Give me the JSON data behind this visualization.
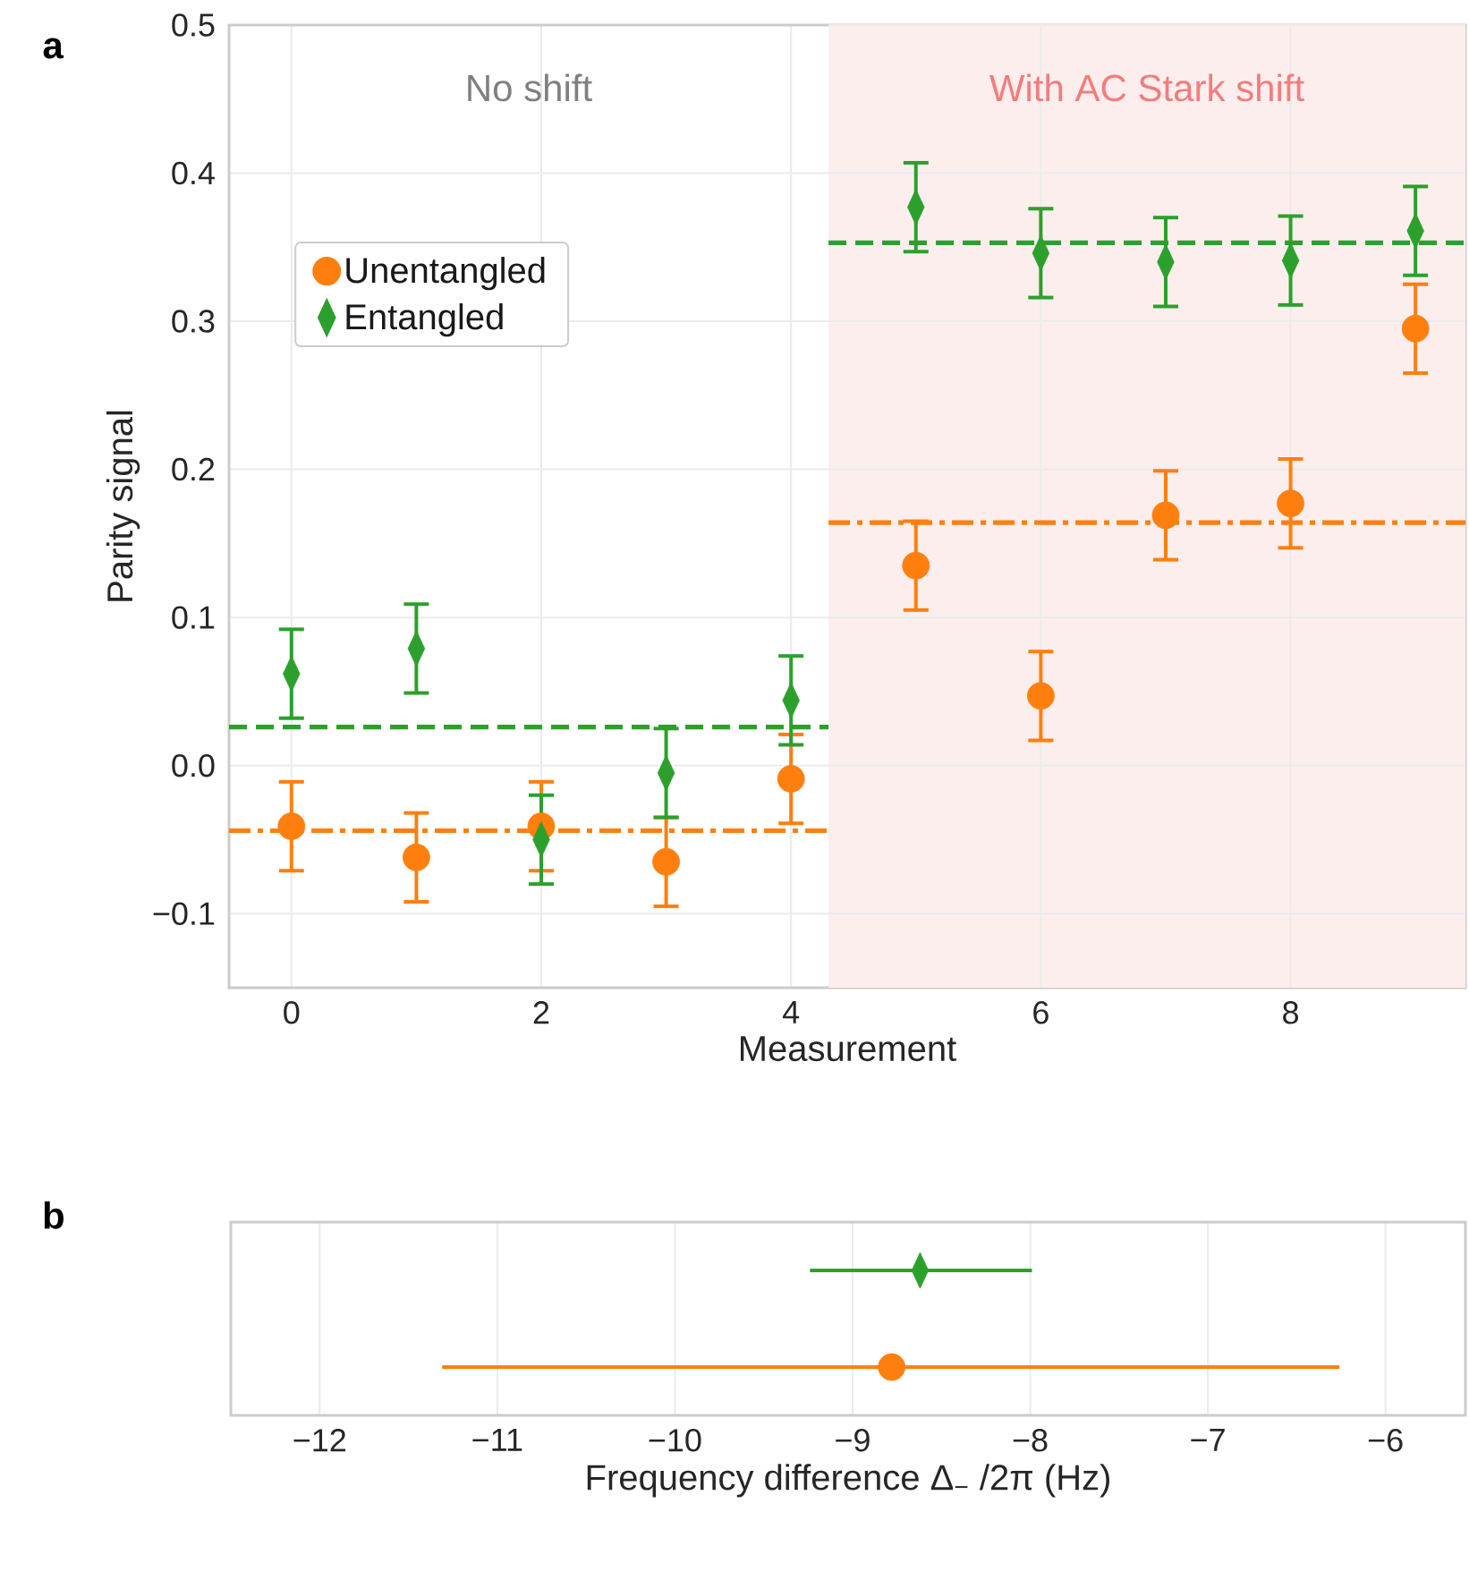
{
  "chart_data": [
    {
      "type": "scatter",
      "title": "a",
      "xlabel": "Measurement",
      "ylabel": "Parity signal",
      "xlim": [
        -0.5,
        9.4
      ],
      "ylim": [
        -0.15,
        0.5
      ],
      "xticks": [
        0,
        2,
        4,
        6,
        8
      ],
      "yticks": [
        {
          "value": -0.1,
          "label": "−0.1"
        },
        {
          "value": 0.0,
          "label": "0.0"
        },
        {
          "value": 0.1,
          "label": "0.1"
        },
        {
          "value": 0.2,
          "label": "0.2"
        },
        {
          "value": 0.3,
          "label": "0.3"
        },
        {
          "value": 0.4,
          "label": "0.4"
        },
        {
          "value": 0.5,
          "label": "0.5"
        }
      ],
      "grid": true,
      "legend": "left",
      "x": [
        0,
        1,
        2,
        3,
        4,
        5,
        6,
        7,
        8,
        9
      ],
      "series": [
        {
          "name": "Unentangled",
          "color": "#ff7f0e",
          "marker": "circle",
          "values": [
            -0.041,
            -0.062,
            -0.041,
            -0.065,
            -0.009,
            0.135,
            0.047,
            0.169,
            0.177,
            0.295
          ],
          "errors": [
            0.03,
            0.03,
            0.03,
            0.03,
            0.03,
            0.03,
            0.03,
            0.03,
            0.03,
            0.03
          ]
        },
        {
          "name": "Entangled",
          "color": "#2ca02c",
          "marker": "diamond",
          "values": [
            0.062,
            0.079,
            -0.05,
            -0.005,
            0.044,
            0.377,
            0.346,
            0.34,
            0.341,
            0.361
          ],
          "errors": [
            0.03,
            0.03,
            0.03,
            0.03,
            0.03,
            0.03,
            0.03,
            0.03,
            0.03,
            0.03
          ]
        },
        {
          "type": "line",
          "color": "#2ca02c",
          "line_style": "dashed",
          "x": [
            -0.5,
            4.3
          ],
          "values": [
            0.026,
            0.026
          ]
        },
        {
          "type": "line",
          "color": "#2ca02c",
          "line_style": "dashed",
          "x": [
            4.3,
            9.4
          ],
          "values": [
            0.353,
            0.353
          ]
        },
        {
          "type": "line",
          "color": "#ff7f0e",
          "line_style": "dashdot",
          "x": [
            -0.5,
            4.3
          ],
          "values": [
            -0.044,
            -0.044
          ]
        },
        {
          "type": "line",
          "color": "#ff7f0e",
          "line_style": "dashdot",
          "x": [
            4.3,
            9.4
          ],
          "values": [
            0.164,
            0.164
          ]
        }
      ],
      "bands": [
        {
          "axis": "x",
          "from": 4.3,
          "to": 9.4,
          "label": "With AC Stark shift",
          "color": "#fdeeee"
        }
      ],
      "annotations": [
        "No shift"
      ]
    },
    {
      "type": "scatter",
      "title": "b",
      "orientation": "horizontal",
      "categories": [
        null,
        null
      ],
      "xlabel": "Frequency difference Δ$_{−}$ /2π (Hz)",
      "xlim": [
        -12.5,
        -5.55
      ],
      "xticks": [
        {
          "value": -12,
          "label": "−12"
        },
        {
          "value": -11,
          "label": "−11"
        },
        {
          "value": -10,
          "label": "−10"
        },
        {
          "value": -9,
          "label": "−9"
        },
        {
          "value": -8,
          "label": "−8"
        },
        {
          "value": -7,
          "label": "−7"
        },
        {
          "value": -6,
          "label": "−6"
        }
      ],
      "grid": "x",
      "series": [
        {
          "color": "#ff7f0e",
          "marker": "circle",
          "values": [
            null,
            -8.78
          ],
          "errors": [
            null,
            [
              -11.31,
              -6.26
            ]
          ]
        },
        {
          "color": "#2ca02c",
          "marker": "diamond",
          "values": [
            -8.62,
            null
          ],
          "errors": [
            [
              -9.24,
              -7.99
            ],
            null
          ]
        }
      ]
    }
  ]
}
